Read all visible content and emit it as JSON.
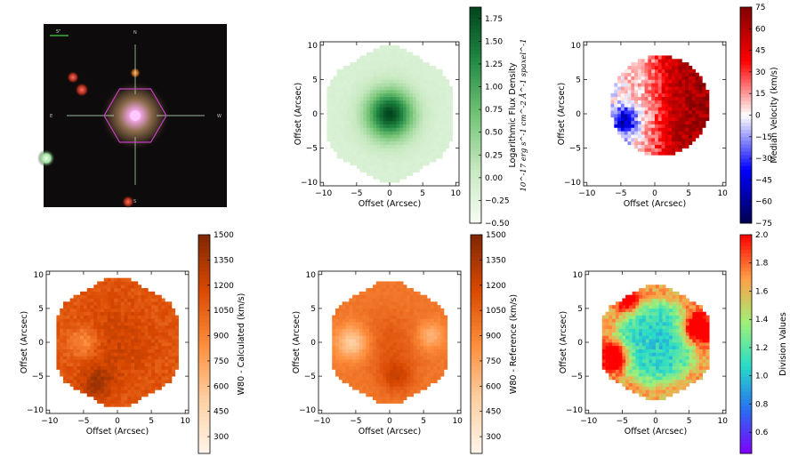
{
  "photo": {
    "compass": {
      "north": "N",
      "south": "S",
      "east": "E",
      "west": "W"
    },
    "scale_label": "5\""
  },
  "chart_data": [
    {
      "type": "heatmap",
      "name": "flux",
      "title": "",
      "xlabel": "Offset (Arcsec)",
      "ylabel": "Offset (Arcsec)",
      "xlim": [
        -10.5,
        10.5
      ],
      "ylim": [
        -10.5,
        10.5
      ],
      "xticks": [
        -10,
        -5,
        0,
        5,
        10
      ],
      "yticks": [
        -10,
        -5,
        0,
        5,
        10
      ],
      "colorbar": {
        "label": "Logarithmic Flux Density",
        "unit": "10^-17 erg s^-1 cm^-2 Å^-1 spaxel^-1",
        "min": -0.5,
        "max": 1.875,
        "ticks": [
          "−0.50",
          "−0.25",
          "0.00",
          "0.25",
          "0.50",
          "0.75",
          "1.00",
          "1.25",
          "1.50",
          "1.75"
        ],
        "tick_values": [
          -0.5,
          -0.25,
          0,
          0.25,
          0.5,
          0.75,
          1.0,
          1.25,
          1.5,
          1.75
        ],
        "colormap": "Greens"
      },
      "field_radius": 9.3,
      "peak": 1.85
    },
    {
      "type": "heatmap",
      "name": "velocity",
      "xlabel": "Offset (Arcsec)",
      "ylabel": "Offset (Arcsec)",
      "xlim": [
        -10.5,
        10.5
      ],
      "ylim": [
        -10.5,
        10.5
      ],
      "xticks": [
        -10,
        -5,
        0,
        5,
        10
      ],
      "yticks": [
        -10,
        -5,
        0,
        5,
        10
      ],
      "colorbar": {
        "label": "Median Velocity (km/s)",
        "min": -75,
        "max": 75,
        "ticks": [
          "75",
          "60",
          "45",
          "30",
          "15",
          "0",
          "−15",
          "−30",
          "−45",
          "−60",
          "−75"
        ],
        "tick_values": [
          75,
          60,
          45,
          30,
          15,
          0,
          -15,
          -30,
          -45,
          -60,
          -75
        ],
        "colormap": "seismic"
      },
      "field_radius": 7.3
    },
    {
      "type": "heatmap",
      "name": "w80_calc",
      "xlabel": "Offset (Arcsec)",
      "ylabel": "Offset (Arcsec)",
      "xlim": [
        -10.5,
        10.5
      ],
      "ylim": [
        -10.5,
        10.5
      ],
      "xticks": [
        -10,
        -5,
        0,
        5,
        10
      ],
      "yticks": [
        -10,
        -5,
        0,
        5,
        10
      ],
      "colorbar": {
        "label": "W80 - Calculated (km/s)",
        "min": 200,
        "max": 1500,
        "ticks": [
          "1500",
          "1350",
          "1200",
          "1050",
          "900",
          "750",
          "600",
          "450",
          "300"
        ],
        "tick_values": [
          1500,
          1350,
          1200,
          1050,
          900,
          750,
          600,
          450,
          300
        ],
        "colormap": "Oranges"
      },
      "field_radius": 9.0
    },
    {
      "type": "heatmap",
      "name": "w80_ref",
      "xlabel": "Offset (Arcsec)",
      "ylabel": "Offset (Arcsec)",
      "xlim": [
        -10.5,
        10.5
      ],
      "ylim": [
        -10.5,
        10.5
      ],
      "xticks": [
        -10,
        -5,
        0,
        5,
        10
      ],
      "yticks": [
        -10,
        -5,
        0,
        5,
        10
      ],
      "colorbar": {
        "label": "W80 - Reference (km/s)",
        "min": 200,
        "max": 1500,
        "ticks": [
          "1500",
          "1350",
          "1200",
          "1050",
          "900",
          "750",
          "600",
          "450",
          "300"
        ],
        "tick_values": [
          1500,
          1350,
          1200,
          1050,
          900,
          750,
          600,
          450,
          300
        ],
        "colormap": "Oranges"
      },
      "field_radius": 8.5
    },
    {
      "type": "heatmap",
      "name": "division",
      "xlabel": "Offset (Arcsec)",
      "ylabel": "Offset (Arcsec)",
      "xlim": [
        -10.5,
        10.5
      ],
      "ylim": [
        -10.5,
        10.5
      ],
      "xticks": [
        -10,
        -5,
        0,
        5,
        10
      ],
      "yticks": [
        -10,
        -5,
        0,
        5,
        10
      ],
      "colorbar": {
        "label": "Division Values",
        "min": 0.45,
        "max": 2.0,
        "ticks": [
          "2.0",
          "1.8",
          "1.6",
          "1.4",
          "1.2",
          "1.0",
          "0.8",
          "0.6"
        ],
        "tick_values": [
          2.0,
          1.8,
          1.6,
          1.4,
          1.2,
          1.0,
          0.8,
          0.6
        ],
        "colormap": "rainbow"
      },
      "field_radius": 8.0
    }
  ],
  "colors": {
    "hexagon": "#c040c0",
    "crosshair": "#c8f0c8"
  }
}
